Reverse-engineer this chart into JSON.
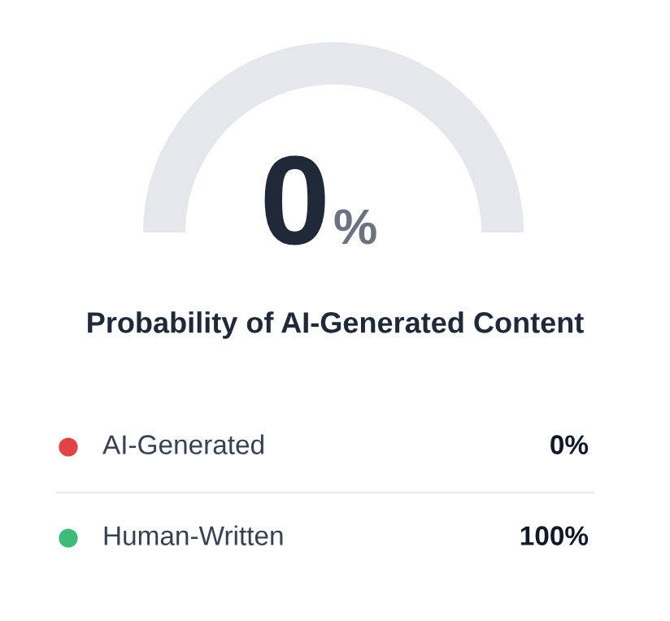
{
  "chart_data": [
    {
      "type": "pie",
      "title": "Probability of AI-Generated Content",
      "categories": [
        null,
        null
      ],
      "values": [
        0,
        100
      ],
      "colors": [
        "#e04444",
        "#e5e7eb"
      ],
      "value_labels": [
        "0%",
        null
      ]
    },
    {
      "type": "other",
      "categories": [
        "AI-Generated",
        "Human-Written"
      ],
      "values": [
        0,
        100
      ],
      "colors": [
        "#e04444",
        "#3dbb78"
      ],
      "value_labels": [
        "0%",
        "100%"
      ]
    }
  ]
}
